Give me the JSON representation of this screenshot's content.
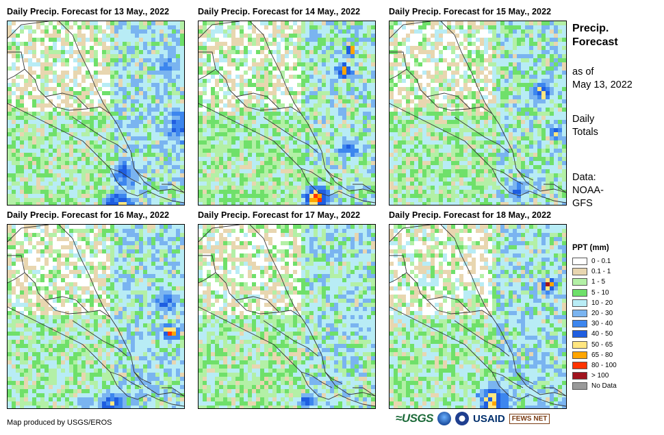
{
  "panels": [
    {
      "title": "Daily Precip. Forecast for 13 May., 2022"
    },
    {
      "title": "Daily Precip. Forecast for 14 May., 2022"
    },
    {
      "title": "Daily Precip. Forecast for 15 May., 2022"
    },
    {
      "title": "Daily Precip. Forecast for 16 May., 2022"
    },
    {
      "title": "Daily Precip. Forecast for 17 May., 2022"
    },
    {
      "title": "Daily Precip. Forecast for 18 May., 2022"
    }
  ],
  "side": {
    "title_line1": "Precip.",
    "title_line2": "Forecast",
    "asof_line1": "as of",
    "asof_line2": "May 13, 2022",
    "daily_line1": "Daily",
    "daily_line2": "Totals",
    "data_line1": "Data:",
    "data_line2": "NOAA-",
    "data_line3": "GFS"
  },
  "legend": {
    "title": "PPT (mm)",
    "items": [
      {
        "label": "0 - 0.1",
        "color": "#ffffff"
      },
      {
        "label": "0.1 - 1",
        "color": "#e8d6b0"
      },
      {
        "label": "1 - 5",
        "color": "#b3f0a6"
      },
      {
        "label": "5 - 10",
        "color": "#6fe06a"
      },
      {
        "label": "10 - 20",
        "color": "#b8ecf5"
      },
      {
        "label": "20 - 30",
        "color": "#7ab4f0"
      },
      {
        "label": "30 - 40",
        "color": "#3d86ee"
      },
      {
        "label": "40 - 50",
        "color": "#1f5ee0"
      },
      {
        "label": "50 - 65",
        "color": "#ffe680"
      },
      {
        "label": "65 - 80",
        "color": "#ffa500"
      },
      {
        "label": "80 - 100",
        "color": "#ff3300"
      },
      {
        "label": "> 100",
        "color": "#a0141e"
      },
      {
        "label": "No Data",
        "color": "#9a9a9a"
      }
    ]
  },
  "footer": {
    "credit": "Map produced by USGS/EROS",
    "logo_usgs": "≈USGS",
    "logo_usaid": "USAID",
    "logo_fews": "FEWS NET"
  }
}
